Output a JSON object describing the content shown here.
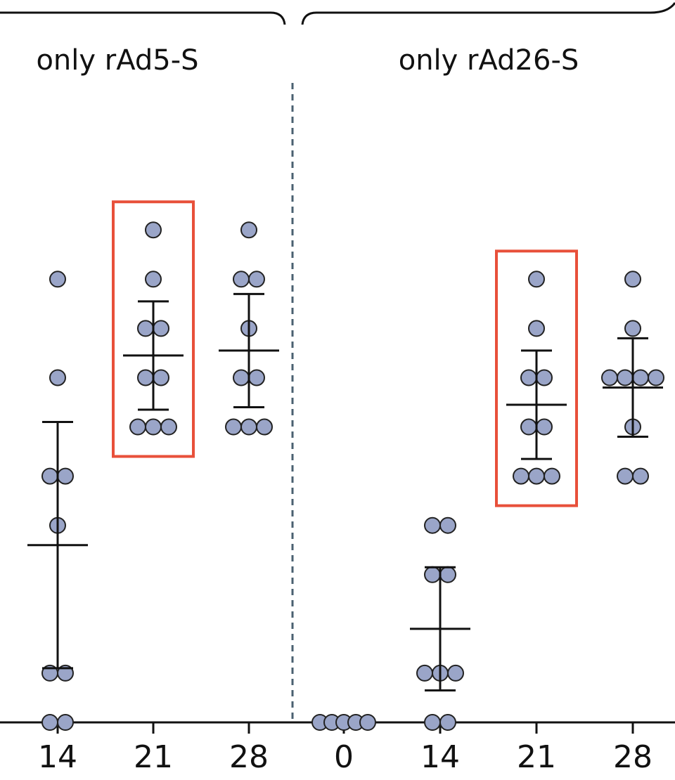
{
  "chart_data": [
    {
      "type": "dot",
      "title": "only rAd5-S",
      "categories": [
        "14",
        "21",
        "28"
      ],
      "values": [
        [
          9,
          7,
          5,
          5,
          4,
          1,
          1,
          0,
          0
        ],
        [
          10,
          9,
          8,
          8,
          7,
          7,
          6,
          6,
          6
        ],
        [
          10,
          9,
          9,
          8,
          7,
          7,
          6,
          6,
          6
        ]
      ],
      "means": [
        3.6,
        7.45,
        7.55
      ],
      "sds": [
        2.5,
        1.1,
        1.15
      ],
      "highlight": [
        false,
        true,
        false
      ],
      "ylim": [
        0,
        13
      ],
      "color": "#9aa5c8",
      "highlight_color": "#e8503a"
    },
    {
      "type": "dot",
      "title": "only rAd26-S",
      "categories": [
        "0",
        "14",
        "21",
        "28"
      ],
      "values": [
        [
          0,
          0,
          0,
          0,
          0
        ],
        [
          4,
          4,
          3,
          3,
          1,
          1,
          1,
          0,
          0
        ],
        [
          9,
          8,
          7,
          7,
          6,
          6,
          5,
          5,
          5
        ],
        [
          9,
          8,
          7,
          7,
          7,
          7,
          6,
          5,
          5
        ]
      ],
      "means": [
        null,
        1.9,
        6.45,
        6.8
      ],
      "sds": [
        null,
        1.25,
        1.1,
        1.0
      ],
      "highlight": [
        false,
        false,
        true,
        false
      ],
      "ylim": [
        0,
        13
      ],
      "color": "#9aa5c8",
      "highlight_color": "#e8503a"
    }
  ]
}
